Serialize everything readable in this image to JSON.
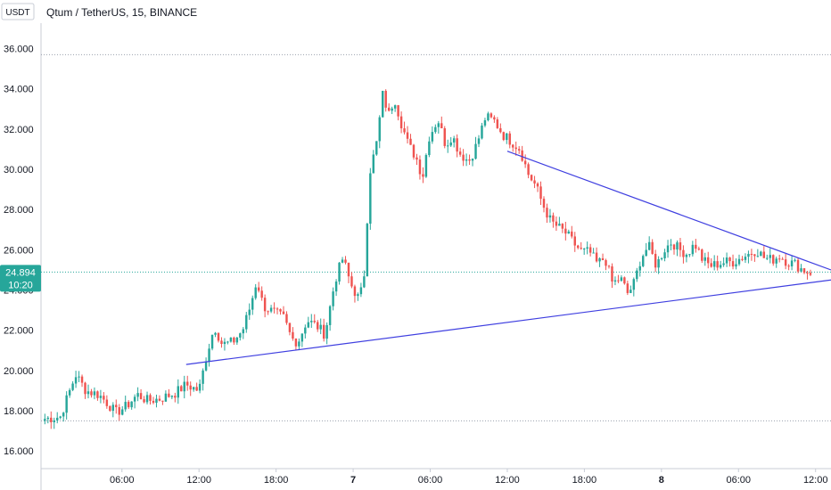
{
  "chart_data": {
    "type": "candlestick",
    "title": "Qtum / TetherUS, 15, BINANCE",
    "currency_label": "USDT",
    "y_ticks": [
      "16.000",
      "18.000",
      "20.000",
      "22.000",
      "24.000",
      "26.000",
      "28.000",
      "30.000",
      "32.000",
      "34.000",
      "36.000"
    ],
    "ylim": [
      15.3,
      37.0
    ],
    "x_ticks": [
      {
        "label": "06:00",
        "t": 6,
        "bold": false
      },
      {
        "label": "12:00",
        "t": 12,
        "bold": false
      },
      {
        "label": "18:00",
        "t": 18,
        "bold": false
      },
      {
        "label": "7",
        "t": 24,
        "bold": true
      },
      {
        "label": "06:00",
        "t": 30,
        "bold": false
      },
      {
        "label": "12:00",
        "t": 36,
        "bold": false
      },
      {
        "label": "18:00",
        "t": 42,
        "bold": false
      },
      {
        "label": "8",
        "t": 48,
        "bold": true
      },
      {
        "label": "06:00",
        "t": 54,
        "bold": false
      },
      {
        "label": "12:00",
        "t": 60,
        "bold": false
      }
    ],
    "xlim": [
      -0.3,
      61.2
    ],
    "last_price": "24.894",
    "countdown": "10:20",
    "horizontal_levels": [
      35.7,
      17.5
    ],
    "trendlines": [
      {
        "from": [
          11.0,
          20.3
        ],
        "to": [
          61.2,
          24.5
        ]
      },
      {
        "from": [
          36.0,
          30.9
        ],
        "to": [
          61.2,
          25.0
        ]
      }
    ],
    "anchors": [
      [
        0,
        17.6
      ],
      [
        1.2,
        17.7
      ],
      [
        2.4,
        19.8
      ],
      [
        3.2,
        19.0
      ],
      [
        4.2,
        18.8
      ],
      [
        5.0,
        18.3
      ],
      [
        5.5,
        17.9
      ],
      [
        6.3,
        18.2
      ],
      [
        7.2,
        18.8
      ],
      [
        8.0,
        18.5
      ],
      [
        9.0,
        18.6
      ],
      [
        10.2,
        18.9
      ],
      [
        11.0,
        19.3
      ],
      [
        12.0,
        19.0
      ],
      [
        12.6,
        20.8
      ],
      [
        13.2,
        22.2
      ],
      [
        13.8,
        21.3
      ],
      [
        14.6,
        21.4
      ],
      [
        15.4,
        22.0
      ],
      [
        16.0,
        23.2
      ],
      [
        16.5,
        24.5
      ],
      [
        17.0,
        23.2
      ],
      [
        17.8,
        22.9
      ],
      [
        18.6,
        22.6
      ],
      [
        19.2,
        21.6
      ],
      [
        19.7,
        21.4
      ],
      [
        20.4,
        22.5
      ],
      [
        21.2,
        22.2
      ],
      [
        21.8,
        21.8
      ],
      [
        22.6,
        24.5
      ],
      [
        23.2,
        25.6
      ],
      [
        23.8,
        24.3
      ],
      [
        24.4,
        23.6
      ],
      [
        24.8,
        24.2
      ],
      [
        25.3,
        29.9
      ],
      [
        25.8,
        31.2
      ],
      [
        26.3,
        33.7
      ],
      [
        26.8,
        32.7
      ],
      [
        27.2,
        33.6
      ],
      [
        27.7,
        32.4
      ],
      [
        28.3,
        31.2
      ],
      [
        28.9,
        30.6
      ],
      [
        29.4,
        29.6
      ],
      [
        29.9,
        31.6
      ],
      [
        30.6,
        32.5
      ],
      [
        31.2,
        31.2
      ],
      [
        31.7,
        31.7
      ],
      [
        32.3,
        30.8
      ],
      [
        33.0,
        30.4
      ],
      [
        33.6,
        31.2
      ],
      [
        34.3,
        32.6
      ],
      [
        35.0,
        32.4
      ],
      [
        35.7,
        31.7
      ],
      [
        36.3,
        31.4
      ],
      [
        37.0,
        31.0
      ],
      [
        37.6,
        29.8
      ],
      [
        38.2,
        29.2
      ],
      [
        38.8,
        28.2
      ],
      [
        39.4,
        27.4
      ],
      [
        40.0,
        27.1
      ],
      [
        40.6,
        26.8
      ],
      [
        41.2,
        26.3
      ],
      [
        41.8,
        25.9
      ],
      [
        42.4,
        25.9
      ],
      [
        43.0,
        25.3
      ],
      [
        43.6,
        25.6
      ],
      [
        44.2,
        24.3
      ],
      [
        44.8,
        24.6
      ],
      [
        45.4,
        23.8
      ],
      [
        45.9,
        24.4
      ],
      [
        46.4,
        25.6
      ],
      [
        47.0,
        26.2
      ],
      [
        47.6,
        25.2
      ],
      [
        48.2,
        26.0
      ],
      [
        48.8,
        26.4
      ],
      [
        49.4,
        26.0
      ],
      [
        50.0,
        25.8
      ],
      [
        50.6,
        26.3
      ],
      [
        51.2,
        25.5
      ],
      [
        51.8,
        25.2
      ],
      [
        52.4,
        25.3
      ],
      [
        53.0,
        25.4
      ],
      [
        53.6,
        25.4
      ],
      [
        54.2,
        25.6
      ],
      [
        54.8,
        25.8
      ],
      [
        55.4,
        26.0
      ],
      [
        56.0,
        25.6
      ],
      [
        56.6,
        25.5
      ],
      [
        57.2,
        25.7
      ],
      [
        57.8,
        25.4
      ],
      [
        58.4,
        25.3
      ],
      [
        59.0,
        25.0
      ],
      [
        59.6,
        24.9
      ]
    ]
  },
  "colors": {
    "up": "#26a69a",
    "down": "#ef5350",
    "trendline": "#3f3fe0",
    "price_badge": "#26a69a",
    "grid": "#e0e3eb",
    "level_line": "#9aa0ad",
    "axis_line": "#c8ccd6"
  }
}
